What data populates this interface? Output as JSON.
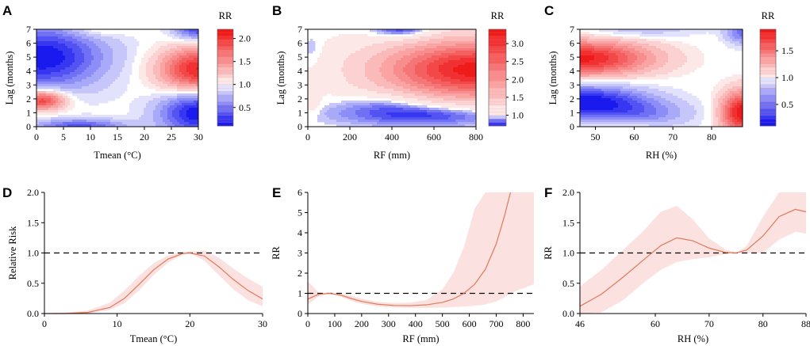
{
  "colors": {
    "blue": "#1a1aef",
    "red": "#ef1a1a",
    "line": "#e07a5a",
    "band": "#fbe1df",
    "ref": "#000000"
  },
  "chart_data": [
    {
      "panel": "A",
      "type": "heatmap",
      "subtype": "contour",
      "xlabel": "Tmean (°C)",
      "ylabel": "Lag (months)",
      "legend_title": "RR",
      "xlim": [
        0,
        30
      ],
      "ylim": [
        0,
        7
      ],
      "xticks": [
        "0",
        "5",
        "10",
        "15",
        "20",
        "25",
        "30"
      ],
      "yticks": [
        "0",
        "1",
        "2",
        "3",
        "4",
        "5",
        "6",
        "7"
      ],
      "color_range": [
        0.1,
        2.2
      ],
      "color_center": 1.0,
      "legend_ticks": [
        "0.5",
        "1.0",
        "1.5",
        "2.0"
      ],
      "blobs": [
        {
          "x": 1,
          "y": 5.0,
          "sx": 8,
          "sy": 1.6,
          "amp": -0.9
        },
        {
          "x": 1,
          "y": 1.9,
          "sx": 3,
          "sy": 0.5,
          "amp": 1.0
        },
        {
          "x": 8,
          "y": 0.05,
          "sx": 6,
          "sy": 0.35,
          "amp": -0.6
        },
        {
          "x": 30,
          "y": 4.1,
          "sx": 5,
          "sy": 1.1,
          "amp": 1.1
        },
        {
          "x": 30,
          "y": 1.0,
          "sx": 5,
          "sy": 1.1,
          "amp": -0.9
        },
        {
          "x": 30,
          "y": 7.0,
          "sx": 3,
          "sy": 0.55,
          "amp": -0.7
        },
        {
          "x": 11,
          "y": 7.0,
          "sx": 4,
          "sy": 0.4,
          "amp": 0.2
        }
      ]
    },
    {
      "panel": "B",
      "type": "heatmap",
      "subtype": "contour",
      "xlabel": "RF (mm)",
      "ylabel": "Lag (months)",
      "legend_title": "RR",
      "xlim": [
        0,
        800
      ],
      "ylim": [
        0,
        7
      ],
      "xticks": [
        "0",
        "200",
        "400",
        "600",
        "800"
      ],
      "yticks": [
        "0",
        "1",
        "2",
        "3",
        "4",
        "5",
        "6",
        "7"
      ],
      "color_range": [
        0.7,
        3.4
      ],
      "color_center": 1.0,
      "legend_ticks": [
        "1.0",
        "1.5",
        "2.0",
        "2.5",
        "3.0"
      ],
      "blobs": [
        {
          "x": 800,
          "y": 4.1,
          "sx": 300,
          "sy": 1.4,
          "amp": 2.3
        },
        {
          "x": 580,
          "y": 1.0,
          "sx": 300,
          "sy": 0.65,
          "amp": -0.35
        },
        {
          "x": 400,
          "y": 2.0,
          "sx": 150,
          "sy": 0.5,
          "amp": -0.15
        },
        {
          "x": 460,
          "y": 7.0,
          "sx": 110,
          "sy": 0.55,
          "amp": -0.35
        },
        {
          "x": 20,
          "y": 5.5,
          "sx": 30,
          "sy": 0.8,
          "amp": -0.1
        },
        {
          "x": 20,
          "y": 1.8,
          "sx": 30,
          "sy": 0.6,
          "amp": 0.15
        }
      ]
    },
    {
      "panel": "C",
      "type": "heatmap",
      "subtype": "contour",
      "xlabel": "RH (%)",
      "ylabel": "Lag (months)",
      "legend_title": "RR",
      "xlim": [
        46,
        88
      ],
      "ylim": [
        0,
        7
      ],
      "xticks": [
        "50",
        "60",
        "70",
        "80"
      ],
      "yticks": [
        "0",
        "1",
        "2",
        "3",
        "4",
        "5",
        "6",
        "7"
      ],
      "color_range": [
        0.1,
        1.9
      ],
      "color_center": 1.0,
      "legend_ticks": [
        "0.5",
        "1.0",
        "1.5"
      ],
      "blobs": [
        {
          "x": 46,
          "y": 4.9,
          "sx": 13,
          "sy": 0.9,
          "amp": 0.85
        },
        {
          "x": 47,
          "y": 1.8,
          "sx": 11,
          "sy": 0.8,
          "amp": -0.9
        },
        {
          "x": 62,
          "y": 0.9,
          "sx": 9,
          "sy": 0.7,
          "amp": -0.35
        },
        {
          "x": 88,
          "y": 1.0,
          "sx": 4,
          "sy": 1.1,
          "amp": 0.9
        },
        {
          "x": 88,
          "y": 6.8,
          "sx": 3,
          "sy": 0.6,
          "amp": -0.5
        },
        {
          "x": 62,
          "y": 7.0,
          "sx": 10,
          "sy": 0.4,
          "amp": -0.2
        },
        {
          "x": 58,
          "y": 0.15,
          "sx": 6,
          "sy": 0.25,
          "amp": 0.15
        }
      ]
    },
    {
      "panel": "D",
      "type": "line",
      "xlabel": "Tmean (°C)",
      "ylabel": "Relative Risk",
      "xlim": [
        0,
        30
      ],
      "ylim": [
        0,
        2
      ],
      "xticks": [
        "0",
        "10",
        "20",
        "30"
      ],
      "yticks": [
        "0.0",
        "0.5",
        "1.0",
        "1.5",
        "2.0"
      ],
      "reference": 1.0,
      "x": [
        0,
        3,
        6,
        9,
        11,
        13,
        15,
        17,
        19,
        20,
        22,
        24,
        26,
        28,
        30
      ],
      "y": [
        0.0,
        0.0,
        0.02,
        0.1,
        0.25,
        0.48,
        0.72,
        0.9,
        0.99,
        1.0,
        0.95,
        0.77,
        0.56,
        0.38,
        0.24
      ],
      "lower": [
        0.0,
        0.0,
        0.0,
        0.06,
        0.17,
        0.38,
        0.63,
        0.84,
        0.97,
        1.0,
        0.87,
        0.63,
        0.4,
        0.22,
        0.12
      ],
      "upper": [
        0.0,
        0.02,
        0.05,
        0.18,
        0.38,
        0.62,
        0.83,
        0.96,
        1.02,
        1.02,
        1.04,
        0.92,
        0.74,
        0.58,
        0.44
      ]
    },
    {
      "panel": "E",
      "type": "line",
      "xlabel": "RF (mm)",
      "ylabel": "RR",
      "xlim": [
        0,
        840
      ],
      "ylim": [
        0,
        6
      ],
      "xticks": [
        "0",
        "100",
        "200",
        "300",
        "400",
        "500",
        "600",
        "700",
        "800"
      ],
      "yticks": [
        "0",
        "1",
        "2",
        "3",
        "4",
        "5",
        "6"
      ],
      "reference": 1.0,
      "x": [
        0,
        40,
        80,
        120,
        160,
        200,
        260,
        320,
        380,
        440,
        500,
        540,
        580,
        620,
        660,
        700,
        730,
        753
      ],
      "y": [
        0.72,
        0.95,
        1.0,
        0.92,
        0.75,
        0.6,
        0.46,
        0.4,
        0.39,
        0.43,
        0.55,
        0.72,
        1.0,
        1.45,
        2.2,
        3.45,
        4.8,
        6.0
      ],
      "lower": [
        0.45,
        0.85,
        1.0,
        0.85,
        0.63,
        0.48,
        0.35,
        0.3,
        0.28,
        0.28,
        0.3,
        0.32,
        0.35,
        0.38,
        0.45,
        0.6,
        0.8,
        1.0
      ],
      "upper": [
        1.6,
        1.05,
        1.0,
        1.0,
        0.88,
        0.74,
        0.58,
        0.52,
        0.54,
        0.66,
        1.2,
        2.0,
        3.3,
        5.2,
        6.0,
        6.0,
        6.0,
        6.0
      ],
      "band_tail": {
        "x": [
          753,
          780,
          840
        ],
        "lower": [
          1.0,
          1.15,
          1.45
        ]
      }
    },
    {
      "panel": "F",
      "type": "line",
      "xlabel": "RH (%)",
      "ylabel": "RR",
      "xlim": [
        46,
        88
      ],
      "ylim": [
        0,
        2
      ],
      "xticks": [
        "46",
        "60",
        "70",
        "80",
        "88"
      ],
      "yticks": [
        "0.0",
        "0.5",
        "1.0",
        "1.5",
        "2.0"
      ],
      "reference": 1.0,
      "x": [
        46,
        50,
        54,
        58,
        61,
        64,
        67,
        70,
        73,
        75,
        77,
        80,
        83,
        86,
        88
      ],
      "y": [
        0.12,
        0.32,
        0.6,
        0.9,
        1.12,
        1.25,
        1.2,
        1.08,
        1.01,
        1.0,
        1.05,
        1.28,
        1.6,
        1.72,
        1.68
      ],
      "lower": [
        0.0,
        0.02,
        0.22,
        0.52,
        0.72,
        0.85,
        0.9,
        0.93,
        0.98,
        1.0,
        1.0,
        1.0,
        1.22,
        1.35,
        1.32
      ],
      "upper": [
        0.45,
        0.72,
        1.05,
        1.38,
        1.68,
        1.78,
        1.55,
        1.24,
        1.06,
        1.0,
        1.12,
        1.6,
        2.0,
        2.0,
        2.0
      ]
    }
  ]
}
